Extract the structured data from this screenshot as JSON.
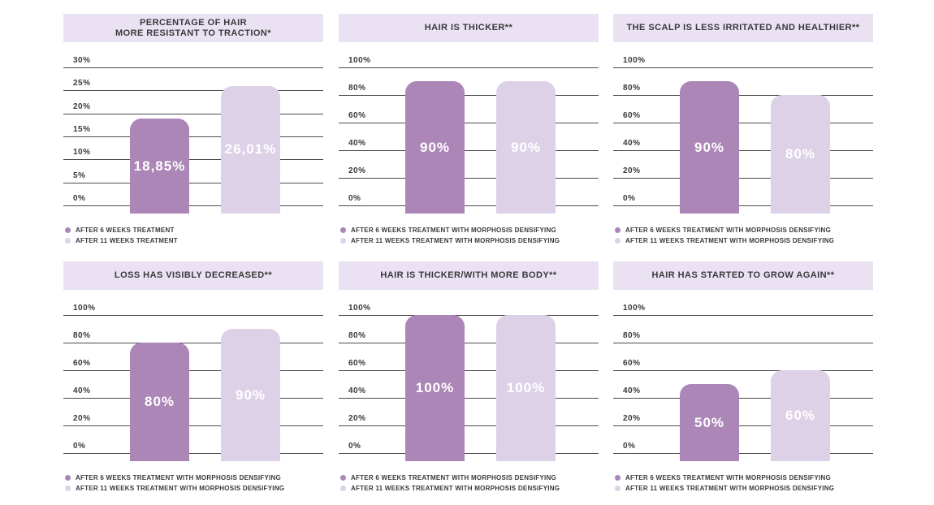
{
  "colors": {
    "background": "#ffffff",
    "banner_bg": "#eae2f2",
    "bar_dark": "#ab86b7",
    "bar_light": "#ddd1e7",
    "grid_line": "#4c494e",
    "text": "#3a383b",
    "value_text": "#ffffff"
  },
  "chart_data": [
    {
      "id": "hair-resistance-to-traction",
      "type": "bar",
      "title": "PERCENTAGE OF HAIR MORE RESISTANT TO TRACTION*",
      "title_lines": [
        "PERCENTAGE OF HAIR",
        "MORE RESISTANT TO TRACTION*"
      ],
      "categories": [
        "AFTER 6 WEEKS TREATMENT",
        "AFTER 11 WEEKS TREATMENT"
      ],
      "values": [
        18.85,
        26.01
      ],
      "value_labels": [
        "18,85%",
        "26,01%"
      ],
      "ylim": [
        0,
        30
      ],
      "yticks": [
        "30%",
        "25%",
        "20%",
        "15%",
        "10%",
        "5%",
        "0%"
      ],
      "grid": true,
      "legend_position": "bottom-left"
    },
    {
      "id": "hair-is-thicker",
      "type": "bar",
      "title": "HAIR IS THICKER**",
      "title_lines": [
        "HAIR IS THICKER**"
      ],
      "categories": [
        "AFTER 6 WEEKS TREATMENT WITH MORPHOSIS DENSIFYING",
        "AFTER 11 WEEKS TREATMENT WITH MORPHOSIS DENSIFYING"
      ],
      "values": [
        90,
        90
      ],
      "value_labels": [
        "90%",
        "90%"
      ],
      "ylim": [
        0,
        100
      ],
      "yticks": [
        "100%",
        "80%",
        "60%",
        "40%",
        "20%",
        "0%"
      ],
      "grid": true,
      "legend_position": "bottom-left"
    },
    {
      "id": "scalp-less-irritated-healthier",
      "type": "bar",
      "title": "THE SCALP IS LESS IRRITATED AND HEALTHIER**",
      "title_lines": [
        "THE SCALP IS LESS IRRITATED AND HEALTHIER**"
      ],
      "categories": [
        "AFTER 6 WEEKS TREATMENT WITH MORPHOSIS DENSIFYING",
        "AFTER 11 WEEKS TREATMENT WITH MORPHOSIS DENSIFYING"
      ],
      "values": [
        90,
        80
      ],
      "value_labels": [
        "90%",
        "80%"
      ],
      "ylim": [
        0,
        100
      ],
      "yticks": [
        "100%",
        "80%",
        "60%",
        "40%",
        "20%",
        "0%"
      ],
      "grid": true,
      "legend_position": "bottom-left"
    },
    {
      "id": "loss-visibly-decreased",
      "type": "bar",
      "title": "LOSS HAS VISIBLY DECREASED**",
      "title_lines": [
        "LOSS HAS VISIBLY DECREASED**"
      ],
      "categories": [
        "AFTER 6 WEEKS TREATMENT WITH MORPHOSIS DENSIFYING",
        "AFTER 11 WEEKS TREATMENT WITH MORPHOSIS DENSIFYING"
      ],
      "values": [
        80,
        90
      ],
      "value_labels": [
        "80%",
        "90%"
      ],
      "ylim": [
        0,
        100
      ],
      "yticks": [
        "100%",
        "80%",
        "60%",
        "40%",
        "20%",
        "0%"
      ],
      "grid": true,
      "legend_position": "bottom-left"
    },
    {
      "id": "hair-thicker-more-body",
      "type": "bar",
      "title": "HAIR IS THICKER/WITH MORE BODY**",
      "title_lines": [
        "HAIR IS THICKER/WITH MORE BODY**"
      ],
      "categories": [
        "AFTER 6 WEEKS TREATMENT WITH MORPHOSIS DENSIFYING",
        "AFTER 11 WEEKS TREATMENT WITH MORPHOSIS DENSIFYING"
      ],
      "values": [
        100,
        100
      ],
      "value_labels": [
        "100%",
        "100%"
      ],
      "ylim": [
        0,
        100
      ],
      "yticks": [
        "100%",
        "80%",
        "60%",
        "40%",
        "20%",
        "0%"
      ],
      "grid": true,
      "legend_position": "bottom-left"
    },
    {
      "id": "hair-started-to-grow-again",
      "type": "bar",
      "title": "HAIR HAS STARTED TO GROW AGAIN**",
      "title_lines": [
        "HAIR HAS STARTED TO GROW AGAIN**"
      ],
      "categories": [
        "AFTER 6 WEEKS TREATMENT WITH MORPHOSIS DENSIFYING",
        "AFTER 11 WEEKS TREATMENT WITH MORPHOSIS DENSIFYING"
      ],
      "values": [
        50,
        60
      ],
      "value_labels": [
        "50%",
        "60%"
      ],
      "ylim": [
        0,
        100
      ],
      "yticks": [
        "100%",
        "80%",
        "60%",
        "40%",
        "20%",
        "0%"
      ],
      "grid": true,
      "legend_position": "bottom-left"
    }
  ]
}
